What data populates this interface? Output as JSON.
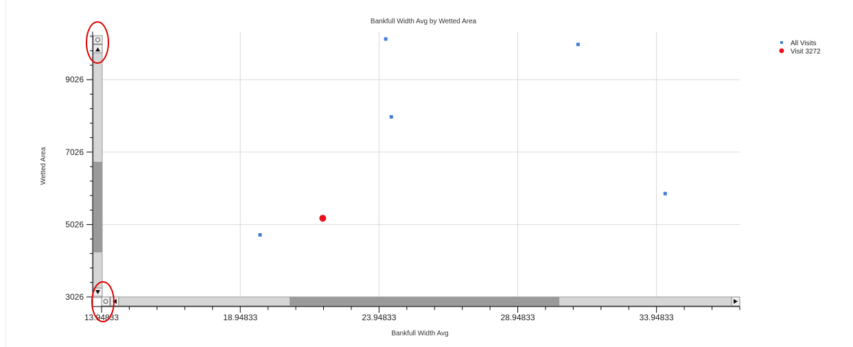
{
  "chart_data": {
    "type": "scatter",
    "title": "Bankfull Width Avg by Wetted Area",
    "xlabel": "Bankfull Width Avg",
    "ylabel": "Wetted Area",
    "xlim": [
      13.94833,
      36.94833
    ],
    "ylim": [
      3026,
      10526
    ],
    "x_ticks": [
      13.94833,
      18.94833,
      23.94833,
      28.94833,
      33.94833
    ],
    "x_tick_labels": [
      "13.94833",
      "18.94833",
      "23.94833",
      "28.94833",
      "33.94833"
    ],
    "y_ticks": [
      3026,
      5026,
      7026,
      9026
    ],
    "y_tick_labels": [
      "3026",
      "5026",
      "7026",
      "9026"
    ],
    "grid": true,
    "legend_position": "top-right",
    "series": [
      {
        "name": "All Visits",
        "color": "#3f7fd6",
        "marker": "square",
        "points": [
          {
            "x": 19.66,
            "y": 4740
          },
          {
            "x": 24.19,
            "y": 10150
          },
          {
            "x": 24.39,
            "y": 8000
          },
          {
            "x": 31.12,
            "y": 10000
          },
          {
            "x": 34.26,
            "y": 5880
          }
        ]
      },
      {
        "name": "Visit 3272",
        "color": "#e8101a",
        "marker": "circle",
        "points": [
          {
            "x": 21.92,
            "y": 5200
          }
        ]
      }
    ]
  },
  "ui": {
    "axis_color": "#000000",
    "grid_color": "#d8d8d8",
    "scrollbar_track": "#d6d6d6",
    "scrollbar_thumb": "#9a9a9a",
    "annotation_color": "#e00000"
  }
}
